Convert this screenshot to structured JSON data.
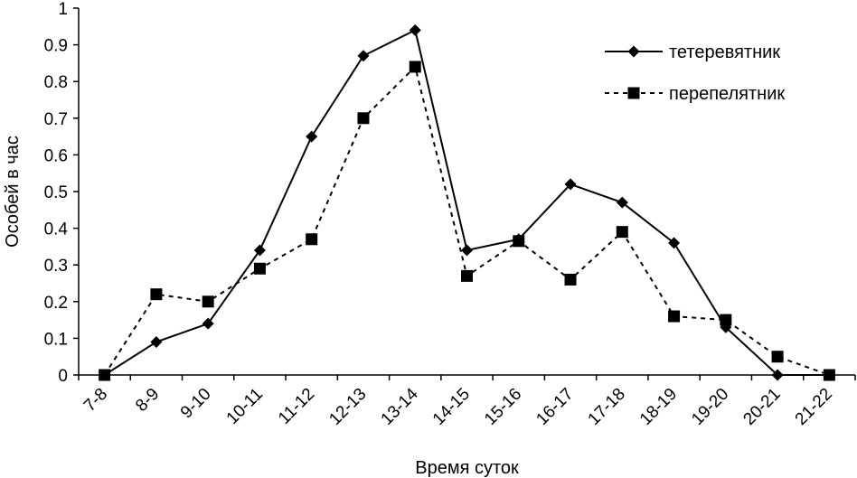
{
  "chart_data": {
    "type": "line",
    "title": "",
    "xlabel": "Время суток",
    "ylabel": "Особей в час",
    "ylim": [
      0,
      1
    ],
    "yticks": [
      0,
      0.1,
      0.2,
      0.3,
      0.4,
      0.5,
      0.6,
      0.7,
      0.8,
      0.9,
      1
    ],
    "ytick_labels": [
      "0",
      "0.1",
      "0.2",
      "0.3",
      "0.4",
      "0.5",
      "0.6",
      "0.7",
      "0.8",
      "0.9",
      "1"
    ],
    "grid": false,
    "legend_position": "top-right",
    "categories": [
      "7-8",
      "8-9",
      "9-10",
      "10-11",
      "11-12",
      "12-13",
      "13-14",
      "14-15",
      "15-16",
      "16-17",
      "17-18",
      "18-19",
      "19-20",
      "20-21",
      "21-22"
    ],
    "series": [
      {
        "name": "тетеревятник",
        "marker": "diamond",
        "line_style": "solid",
        "color": "#000000",
        "values": [
          0,
          0.09,
          0.14,
          0.34,
          0.65,
          0.87,
          0.94,
          0.34,
          0.37,
          0.52,
          0.47,
          0.36,
          0.13,
          0,
          0
        ]
      },
      {
        "name": "перепелятник",
        "marker": "square",
        "line_style": "dashed",
        "color": "#000000",
        "values": [
          0,
          0.22,
          0.2,
          0.29,
          0.37,
          0.7,
          0.84,
          0.27,
          0.365,
          0.26,
          0.39,
          0.16,
          0.15,
          0.05,
          0
        ]
      }
    ]
  }
}
